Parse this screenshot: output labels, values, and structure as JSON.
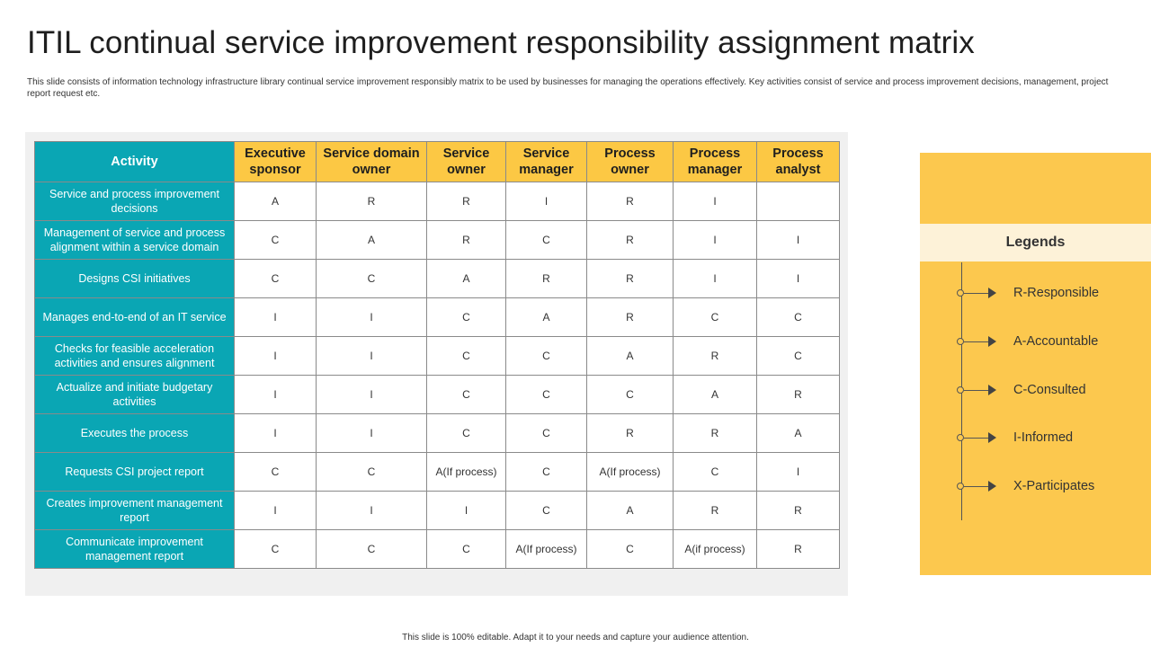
{
  "title": "ITIL continual service improvement responsibility assignment matrix",
  "description": "This slide consists of information technology infrastructure library continual service improvement responsibly matrix to be used by businesses for managing the operations effectively. Key activities consist of service and process improvement decisions, management,  project report request etc.",
  "table": {
    "headers": [
      "Activity",
      "Executive sponsor",
      "Service domain owner",
      "Service owner",
      "Service manager",
      "Process owner",
      "Process manager",
      "Process analyst"
    ],
    "rows": [
      {
        "activity": "Service and process improvement decisions",
        "cells": [
          "A",
          "R",
          "R",
          "I",
          "R",
          "I",
          ""
        ]
      },
      {
        "activity": "Management of service and process alignment within a service domain",
        "cells": [
          "C",
          "A",
          "R",
          "C",
          "R",
          "I",
          "I"
        ]
      },
      {
        "activity": "Designs CSI initiatives",
        "cells": [
          "C",
          "C",
          "A",
          "R",
          "R",
          "I",
          "I"
        ]
      },
      {
        "activity": "Manages end-to-end of an IT service",
        "cells": [
          "I",
          "I",
          "C",
          "A",
          "R",
          "C",
          "C"
        ]
      },
      {
        "activity": "Checks for feasible acceleration activities and ensures alignment",
        "cells": [
          "I",
          "I",
          "C",
          "C",
          "A",
          "R",
          "C"
        ]
      },
      {
        "activity": "Actualize and initiate budgetary activities",
        "cells": [
          "I",
          "I",
          "C",
          "C",
          "C",
          "A",
          "R"
        ]
      },
      {
        "activity": "Executes the process",
        "cells": [
          "I",
          "I",
          "C",
          "C",
          "R",
          "R",
          "A"
        ]
      },
      {
        "activity": "Requests CSI project report",
        "cells": [
          "C",
          "C",
          "A(If process)",
          "C",
          "A(If process)",
          "C",
          "I"
        ]
      },
      {
        "activity": "Creates improvement management report",
        "cells": [
          "I",
          "I",
          "I",
          "C",
          "A",
          "R",
          "R"
        ]
      },
      {
        "activity": "Communicate improvement management report",
        "cells": [
          "C",
          "C",
          "C",
          "A(If process)",
          "C",
          "A(if process)",
          "R"
        ]
      }
    ]
  },
  "legend": {
    "title": "Legends",
    "items": [
      "R-Responsible",
      "A-Accountable",
      "C-Consulted",
      "I-Informed",
      "X-Participates"
    ]
  },
  "footer": "This slide is 100% editable.  Adapt it to your needs and capture your audience attention.",
  "colors": {
    "teal": "#0aa6b4",
    "yellow": "#fcc844",
    "legend_bg": "#fcc84e",
    "legend_header_bg": "#fdf2d8"
  }
}
